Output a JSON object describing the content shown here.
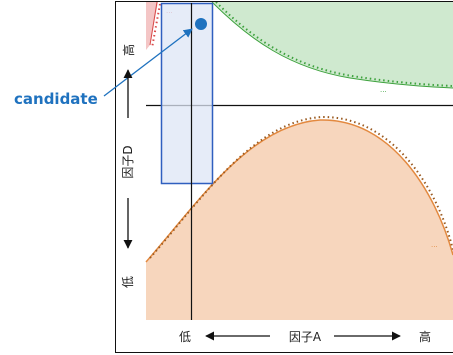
{
  "annotation": {
    "candidate_label": "candidate"
  },
  "y_axis": {
    "label": "因子D",
    "high": "高",
    "low": "低"
  },
  "x_axis": {
    "label": "因子A",
    "low": "低",
    "high": "高"
  },
  "region_labels": {
    "red": "...",
    "green": "...",
    "orange": "..."
  },
  "colors": {
    "candidate": "#1f72bf",
    "highlight_fill": "#dde6f6",
    "highlight_stroke": "#2f5fbf",
    "red_fill": "#f4c6c6",
    "red_line": "#d94a4a",
    "green_fill": "#cfe9cf",
    "green_line": "#3ea23e",
    "orange_fill": "#f7d6bd",
    "orange_line": "#e3893f",
    "orange_dots": "#9a5a20",
    "axis": "#111111"
  }
}
